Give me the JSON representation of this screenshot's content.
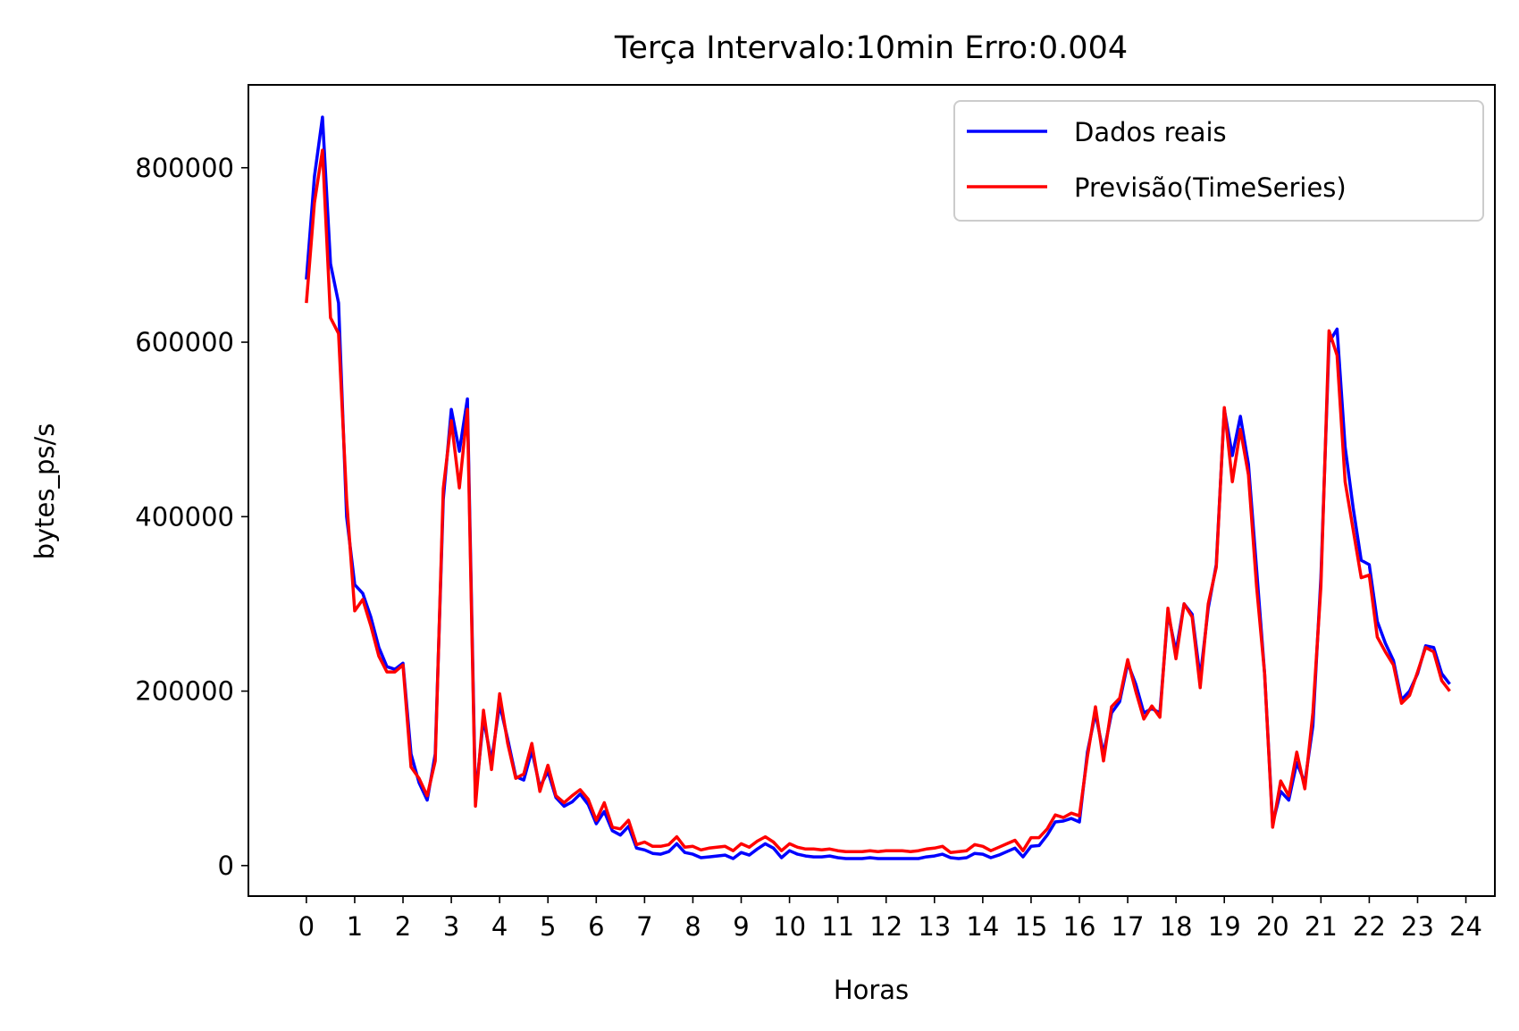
{
  "chart_data": {
    "type": "line",
    "title": "Terça Intervalo:10min Erro:0.004",
    "xlabel": "Horas",
    "ylabel": "bytes_ps/s",
    "xlim": [
      -1.2,
      24.6
    ],
    "ylim": [
      -35000,
      895000
    ],
    "x_ticks": [
      0,
      1,
      2,
      3,
      4,
      5,
      6,
      7,
      8,
      9,
      10,
      11,
      12,
      13,
      14,
      15,
      16,
      17,
      18,
      19,
      20,
      21,
      22,
      23,
      24
    ],
    "x_tick_labels": [
      "0",
      "1",
      "2",
      "3",
      "4",
      "5",
      "6",
      "7",
      "8",
      "9",
      "10",
      "11",
      "12",
      "13",
      "14",
      "15",
      "16",
      "17",
      "18",
      "19",
      "20",
      "21",
      "22",
      "23",
      "24"
    ],
    "y_ticks": [
      0,
      200000,
      400000,
      600000,
      800000
    ],
    "y_tick_labels": [
      "0",
      "200000",
      "400000",
      "600000",
      "800000"
    ],
    "grid": false,
    "legend_position": "top-right",
    "x": [
      0.0,
      0.1667,
      0.3333,
      0.5,
      0.6667,
      0.8333,
      1.0,
      1.1667,
      1.3333,
      1.5,
      1.6667,
      1.8333,
      2.0,
      2.1667,
      2.3333,
      2.5,
      2.6667,
      2.8333,
      3.0,
      3.1667,
      3.3333,
      3.5,
      3.6667,
      3.8333,
      4.0,
      4.1667,
      4.3333,
      4.5,
      4.6667,
      4.8333,
      5.0,
      5.1667,
      5.3333,
      5.5,
      5.6667,
      5.8333,
      6.0,
      6.1667,
      6.3333,
      6.5,
      6.6667,
      6.8333,
      7.0,
      7.1667,
      7.3333,
      7.5,
      7.6667,
      7.8333,
      8.0,
      8.1667,
      8.3333,
      8.5,
      8.6667,
      8.8333,
      9.0,
      9.1667,
      9.3333,
      9.5,
      9.6667,
      9.8333,
      10.0,
      10.1667,
      10.3333,
      10.5,
      10.6667,
      10.8333,
      11.0,
      11.1667,
      11.3333,
      11.5,
      11.6667,
      11.8333,
      12.0,
      12.1667,
      12.3333,
      12.5,
      12.6667,
      12.8333,
      13.0,
      13.1667,
      13.3333,
      13.5,
      13.6667,
      13.8333,
      14.0,
      14.1667,
      14.3333,
      14.5,
      14.6667,
      14.8333,
      15.0,
      15.1667,
      15.3333,
      15.5,
      15.6667,
      15.8333,
      16.0,
      16.1667,
      16.3333,
      16.5,
      16.6667,
      16.8333,
      17.0,
      17.1667,
      17.3333,
      17.5,
      17.6667,
      17.8333,
      18.0,
      18.1667,
      18.3333,
      18.5,
      18.6667,
      18.8333,
      19.0,
      19.1667,
      19.3333,
      19.5,
      19.6667,
      19.8333,
      20.0,
      20.1667,
      20.3333,
      20.5,
      20.6667,
      20.8333,
      21.0,
      21.1667,
      21.3333,
      21.5,
      21.6667,
      21.8333,
      22.0,
      22.1667,
      22.3333,
      22.5,
      22.6667,
      22.8333,
      23.0,
      23.1667,
      23.3333,
      23.5,
      23.6667
    ],
    "series": [
      {
        "name": "Dados reais",
        "color": "#0000ff",
        "values": [
          672000,
          790000,
          858000,
          690000,
          645000,
          400000,
          322000,
          312000,
          285000,
          250000,
          228000,
          225000,
          232000,
          128000,
          95000,
          75000,
          128000,
          420000,
          523000,
          475000,
          535000,
          78000,
          168000,
          120000,
          185000,
          145000,
          102000,
          98000,
          132000,
          90000,
          108000,
          78000,
          68000,
          73000,
          82000,
          70000,
          48000,
          62000,
          40000,
          35000,
          45000,
          20000,
          18000,
          14000,
          13000,
          16000,
          25000,
          15000,
          13000,
          9000,
          10000,
          11000,
          12000,
          8000,
          15000,
          12000,
          19000,
          25000,
          20000,
          9000,
          17000,
          13000,
          11000,
          10000,
          10000,
          11000,
          9000,
          8000,
          8000,
          8000,
          9000,
          8000,
          8000,
          8000,
          8000,
          8000,
          8000,
          10000,
          11000,
          13000,
          9000,
          8000,
          9000,
          14000,
          13000,
          9000,
          12000,
          16000,
          20000,
          10000,
          22000,
          23000,
          35000,
          50000,
          51000,
          54000,
          50000,
          130000,
          175000,
          128000,
          175000,
          188000,
          232000,
          208000,
          175000,
          180000,
          175000,
          290000,
          245000,
          300000,
          288000,
          215000,
          295000,
          345000,
          523000,
          470000,
          515000,
          460000,
          340000,
          220000,
          48000,
          85000,
          75000,
          118000,
          95000,
          160000,
          330000,
          600000,
          615000,
          480000,
          410000,
          350000,
          345000,
          280000,
          255000,
          235000,
          190000,
          200000,
          220000,
          252000,
          250000,
          220000,
          208000
        ]
      },
      {
        "name": "Previsão(TimeSeries)",
        "color": "#ff0000",
        "values": [
          645000,
          760000,
          820000,
          628000,
          610000,
          420000,
          292000,
          305000,
          275000,
          240000,
          222000,
          222000,
          230000,
          113000,
          100000,
          80000,
          120000,
          432000,
          510000,
          433000,
          523000,
          68000,
          178000,
          110000,
          197000,
          140000,
          100000,
          105000,
          140000,
          85000,
          115000,
          80000,
          72000,
          80000,
          87000,
          76000,
          52000,
          72000,
          44000,
          42000,
          52000,
          24000,
          27000,
          22000,
          22000,
          24000,
          33000,
          21000,
          22000,
          18000,
          20000,
          21000,
          22000,
          17000,
          25000,
          21000,
          28000,
          33000,
          27000,
          17000,
          25000,
          21000,
          19000,
          19000,
          18000,
          19000,
          17000,
          16000,
          16000,
          16000,
          17000,
          16000,
          17000,
          17000,
          17000,
          16000,
          17000,
          19000,
          20000,
          22000,
          15000,
          16000,
          17000,
          24000,
          22000,
          17000,
          21000,
          25000,
          29000,
          17000,
          32000,
          32000,
          42000,
          58000,
          55000,
          60000,
          57000,
          125000,
          182000,
          120000,
          182000,
          192000,
          236000,
          200000,
          168000,
          183000,
          170000,
          295000,
          237000,
          300000,
          285000,
          204000,
          300000,
          342000,
          525000,
          440000,
          500000,
          448000,
          320000,
          220000,
          44000,
          97000,
          80000,
          130000,
          88000,
          175000,
          320000,
          613000,
          585000,
          440000,
          385000,
          330000,
          333000,
          262000,
          245000,
          230000,
          186000,
          195000,
          222000,
          250000,
          245000,
          212000,
          200000
        ]
      }
    ]
  }
}
